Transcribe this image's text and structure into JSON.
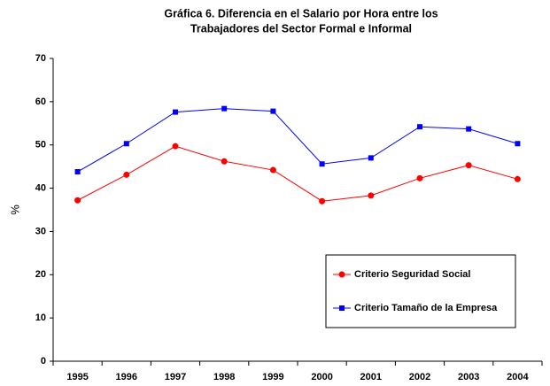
{
  "chart_data": {
    "type": "line",
    "title": [
      "Gráfica 6. Diferencia en el Salario por Hora entre los",
      "Trabajadores del Sector Formal e Informal"
    ],
    "y_label": "%",
    "categories": [
      "1995",
      "1996",
      "1997",
      "1998",
      "1999",
      "2000",
      "2001",
      "2002",
      "2003",
      "2004"
    ],
    "series": [
      {
        "name": "Criterio Seguridad Social",
        "color": "#ff0000",
        "marker": "circle",
        "values": [
          37.2,
          43.1,
          49.7,
          46.2,
          44.2,
          37.0,
          38.3,
          42.3,
          45.3,
          42.1
        ]
      },
      {
        "name": "Criterio Tamaño de la Empresa",
        "color": "#0000ff",
        "marker": "square",
        "values": [
          43.8,
          50.3,
          57.6,
          58.4,
          57.8,
          45.6,
          47.0,
          54.2,
          53.7,
          50.3
        ]
      }
    ],
    "ylim": [
      0,
      70
    ],
    "yticks": [
      0,
      10,
      20,
      30,
      40,
      50,
      60,
      70
    ],
    "grid": false
  }
}
